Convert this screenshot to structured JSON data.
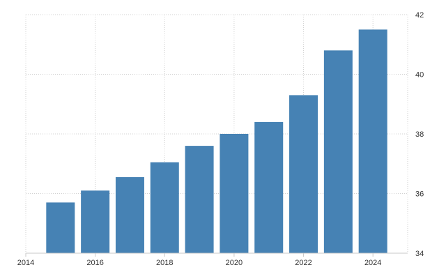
{
  "chart_data": {
    "type": "bar",
    "x": [
      2015,
      2016,
      2017,
      2018,
      2019,
      2020,
      2021,
      2022,
      2023,
      2024
    ],
    "values": [
      35.7,
      36.1,
      36.55,
      37.05,
      37.6,
      38.0,
      38.4,
      39.3,
      40.8,
      41.5
    ],
    "xlim": [
      2014,
      2025
    ],
    "ylim": [
      34,
      42
    ],
    "x_ticks": [
      2014,
      2016,
      2018,
      2020,
      2022,
      2024
    ],
    "y_ticks": [
      34,
      36,
      38,
      40,
      42
    ],
    "x_tick_labels": [
      "2014",
      "2016",
      "2018",
      "2020",
      "2022",
      "2024"
    ],
    "y_tick_labels": [
      "34",
      "36",
      "38",
      "40",
      "42"
    ],
    "title": "",
    "xlabel": "",
    "ylabel": "",
    "y_axis_side": "right",
    "grid": true,
    "legend": "none",
    "bar_color": "#4682b4"
  }
}
